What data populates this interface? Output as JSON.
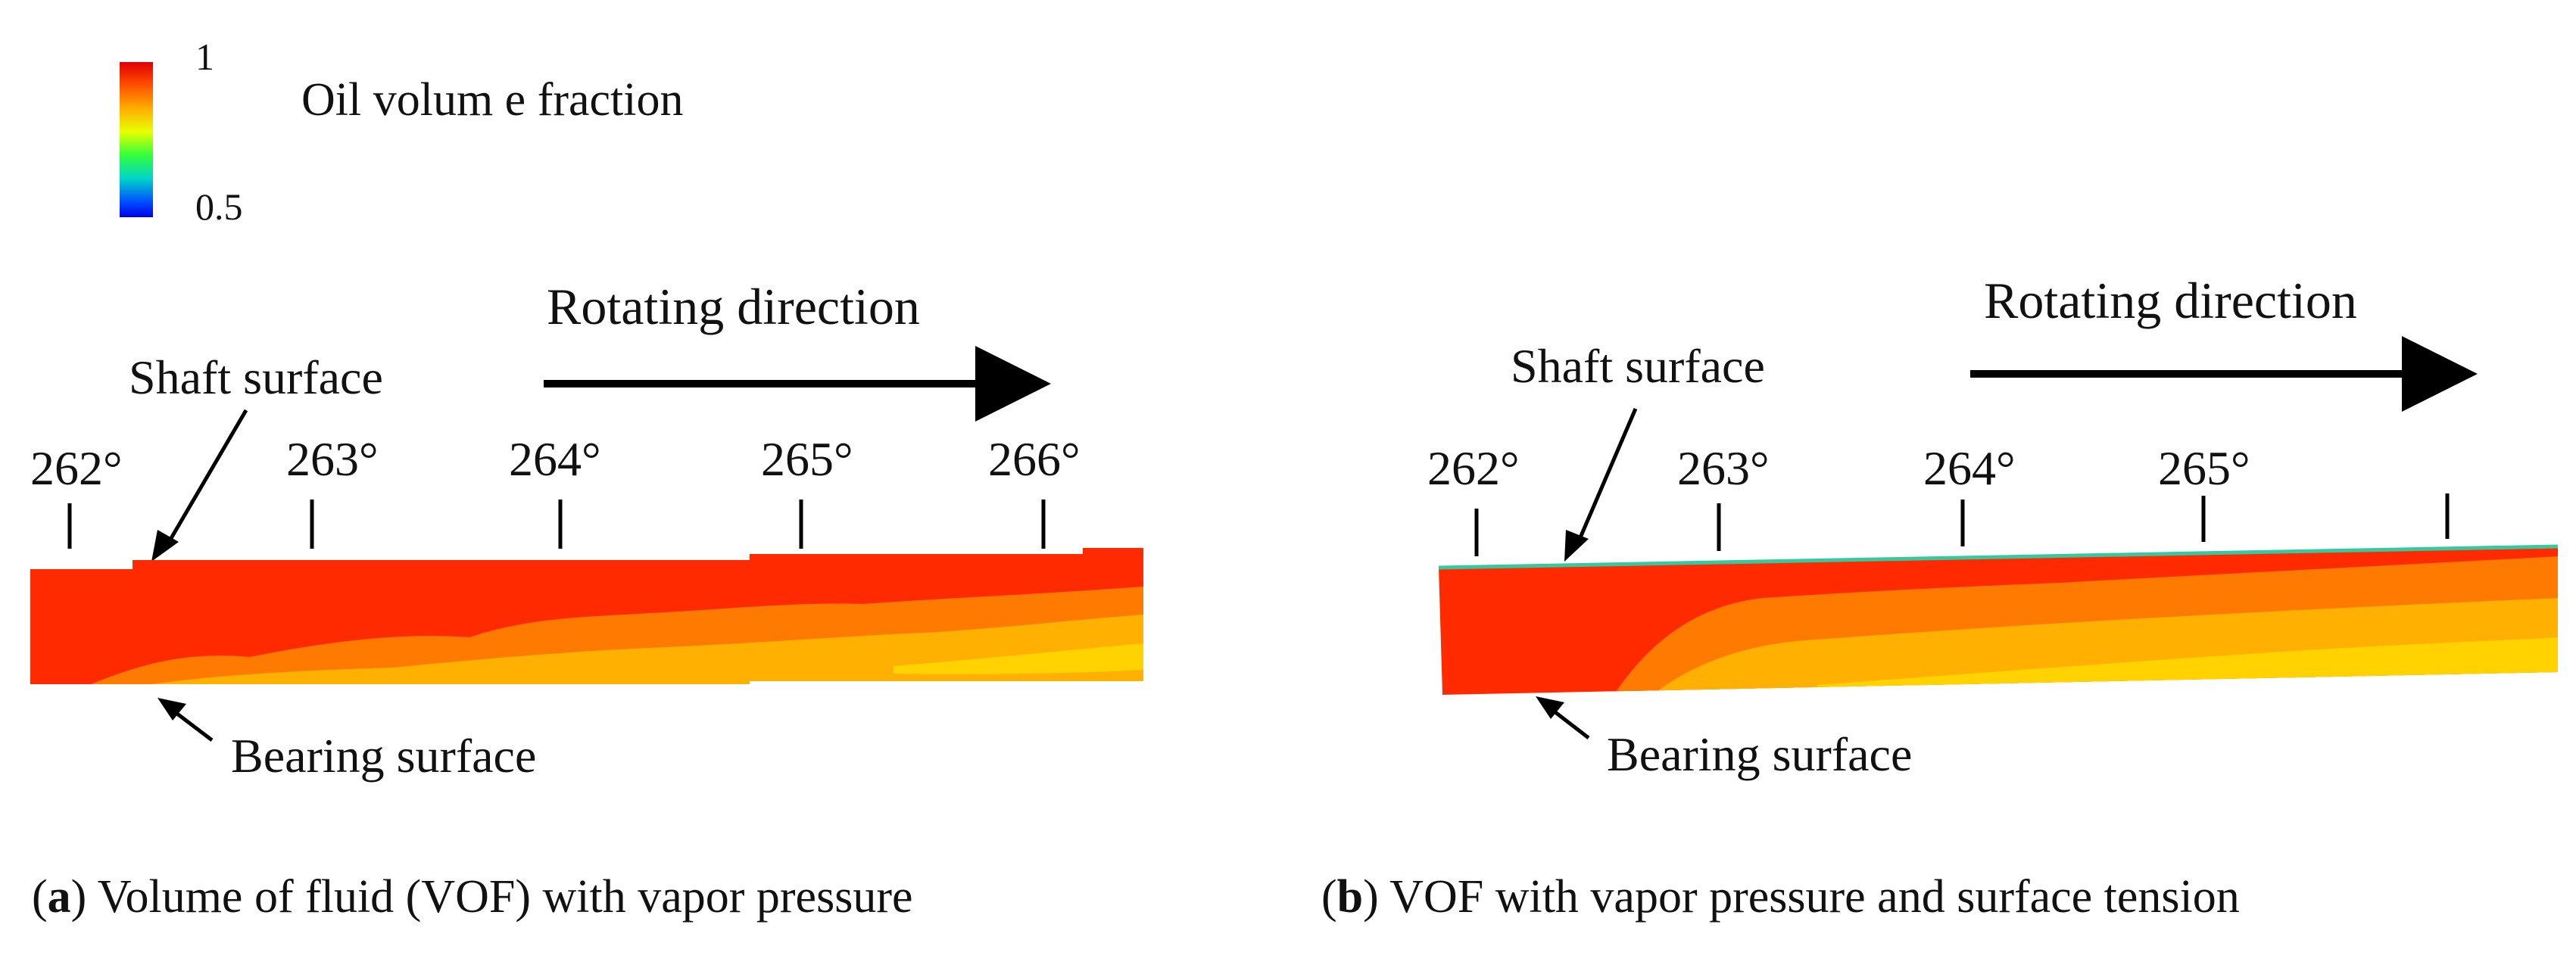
{
  "legend": {
    "title": "Oil volum e fraction",
    "max_label": "1",
    "min_label": "0.5",
    "colors": [
      "#e00000",
      "#ff4a00",
      "#ffae00",
      "#e8ff00",
      "#33ff3a",
      "#00d5c8",
      "#0050ff",
      "#0000e8"
    ]
  },
  "panel_a": {
    "rotating_label": "Rotating direction",
    "shaft_label": "Shaft surface",
    "bearing_label": "Bearing surface",
    "angles": [
      "262°",
      "263°",
      "264°",
      "265°",
      "266°"
    ],
    "caption_letter": "a",
    "caption_open": "(",
    "caption_close": ") ",
    "caption_text": "Volume of fluid (VOF) with vapor pressure"
  },
  "panel_b": {
    "rotating_label": "Rotating direction",
    "shaft_label": "Shaft surface",
    "bearing_label": "Bearing surface",
    "angles": [
      "262°",
      "263°",
      "264°",
      "265°"
    ],
    "caption_letter": "b",
    "caption_open": "(",
    "caption_close": ") ",
    "caption_text": "VOF with vapor pressure and surface tension"
  },
  "field_colors": {
    "saturated": "#ff2a00",
    "mid": "#ff7a00",
    "light": "#ffb000",
    "lightest": "#ffd200",
    "edge": "#36c9a0"
  }
}
